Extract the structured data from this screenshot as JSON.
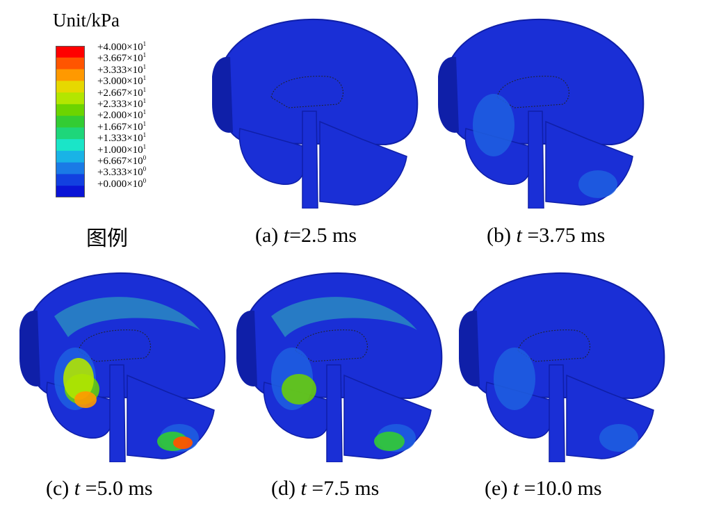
{
  "legend": {
    "title": "Unit/kPa",
    "levels": [
      {
        "mant": "+4.000×10",
        "exp": "1",
        "color": "#ff0000"
      },
      {
        "mant": "+3.667×10",
        "exp": "1",
        "color": "#ff5500"
      },
      {
        "mant": "+3.333×10",
        "exp": "1",
        "color": "#ff9900"
      },
      {
        "mant": "+3.000×10",
        "exp": "1",
        "color": "#e6d800"
      },
      {
        "mant": "+2.667×10",
        "exp": "1",
        "color": "#b3e600"
      },
      {
        "mant": "+2.333×10",
        "exp": "1",
        "color": "#6cd400"
      },
      {
        "mant": "+2.000×10",
        "exp": "1",
        "color": "#33cc33"
      },
      {
        "mant": "+1.667×10",
        "exp": "1",
        "color": "#1ed67a"
      },
      {
        "mant": "+1.333×10",
        "exp": "1",
        "color": "#1ae5c8"
      },
      {
        "mant": "+1.000×10",
        "exp": "1",
        "color": "#19b3e6"
      },
      {
        "mant": "+6.667×10",
        "exp": "0",
        "color": "#1a7ae6"
      },
      {
        "mant": "+3.333×10",
        "exp": "0",
        "color": "#1240e0"
      },
      {
        "mant": "+0.000×10",
        "exp": "0",
        "color": "#0a14d6"
      }
    ],
    "caption": "图例"
  },
  "panels": [
    {
      "prefix": "(a) ",
      "t": "t",
      "suffix": "=2.5 ms",
      "level": 0
    },
    {
      "prefix": "(b) ",
      "t": "t",
      "suffix": " =3.75 ms",
      "level": 1
    },
    {
      "prefix": "(c) ",
      "t": "t",
      "suffix": " =5.0 ms",
      "level": 3
    },
    {
      "prefix": "(d) ",
      "t": "t",
      "suffix": " =7.5 ms",
      "level": 2
    },
    {
      "prefix": "(e) ",
      "t": "t",
      "suffix": " =10.0 ms",
      "level": 1
    }
  ],
  "colors": {
    "base": "#1a2fd6",
    "dark": "#0f1fa8",
    "mid": "#1f5fe0",
    "teal": "#2a8fc0"
  }
}
